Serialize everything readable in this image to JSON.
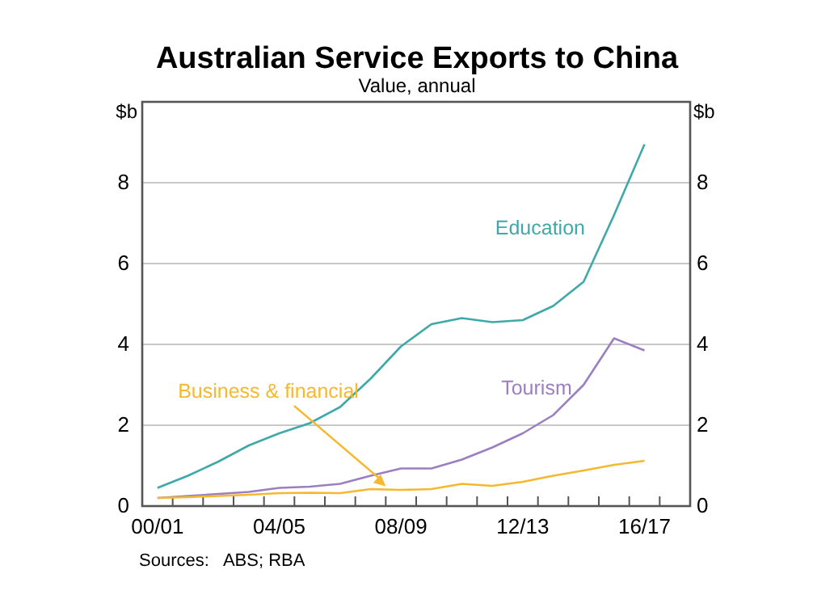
{
  "chart_data": {
    "type": "line",
    "title": "Australian Service Exports to China",
    "subtitle": "Value, annual",
    "ylabel": "$b",
    "y2label": "$b",
    "categories": [
      "00/01",
      null,
      null,
      null,
      "04/05",
      null,
      null,
      null,
      "08/09",
      null,
      null,
      null,
      "12/13",
      null,
      null,
      null,
      "16/17"
    ],
    "series": [
      {
        "name": "Education",
        "color": "#3fa9a9",
        "values": [
          0.45,
          0.75,
          1.1,
          1.5,
          1.8,
          2.05,
          2.45,
          3.15,
          3.95,
          4.5,
          4.65,
          4.55,
          4.6,
          4.95,
          5.55,
          7.2,
          8.95
        ]
      },
      {
        "name": "Tourism",
        "color": "#9b7fc0",
        "values": [
          0.2,
          0.25,
          0.3,
          0.35,
          0.45,
          0.48,
          0.55,
          0.75,
          0.93,
          0.93,
          1.15,
          1.45,
          1.8,
          2.25,
          3.0,
          4.15,
          3.85
        ]
      },
      {
        "name": "Business & financial",
        "color": "#f5b82e",
        "values": [
          0.2,
          0.22,
          0.25,
          0.28,
          0.32,
          0.33,
          0.32,
          0.42,
          0.4,
          0.42,
          0.55,
          0.5,
          0.6,
          0.75,
          0.88,
          1.02,
          1.12
        ]
      }
    ],
    "ylim": [
      0,
      10
    ],
    "yticks": [
      0,
      2,
      4,
      6,
      8
    ],
    "y2lim": [
      0,
      10
    ],
    "y2ticks": [
      0,
      2,
      4,
      6,
      8
    ],
    "grid": "y",
    "marker": "none",
    "line_style": "solid",
    "annotations": [
      "Sources:   ABS; RBA"
    ]
  }
}
